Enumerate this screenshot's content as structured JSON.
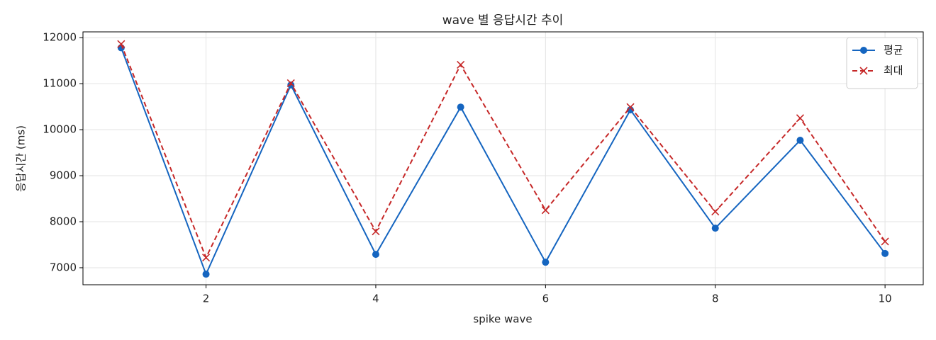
{
  "chart_data": {
    "type": "line",
    "title": "wave 별 응답시간 추이",
    "x_label": "spike wave",
    "y_label": "응답시간 (ms)",
    "x": [
      1,
      2,
      3,
      4,
      5,
      6,
      7,
      8,
      9,
      10
    ],
    "series": [
      {
        "name": "평균",
        "color": "#1565c0",
        "linestyle": "solid",
        "marker": "circle",
        "values": [
          11780,
          6860,
          10970,
          7290,
          10490,
          7120,
          10430,
          7860,
          9770,
          7310
        ]
      },
      {
        "name": "최대",
        "color": "#c62828",
        "linestyle": "dashed",
        "marker": "x",
        "values": [
          11860,
          7220,
          11010,
          7790,
          11410,
          8250,
          10490,
          8220,
          10250,
          7570
        ]
      }
    ],
    "xlim": [
      0.55,
      10.45
    ],
    "xticks": [
      2,
      4,
      6,
      8,
      10
    ],
    "ylim": [
      6630,
      12125
    ],
    "yticks": [
      7000,
      8000,
      9000,
      10000,
      11000,
      12000
    ],
    "grid": true,
    "legend": "upper right"
  }
}
